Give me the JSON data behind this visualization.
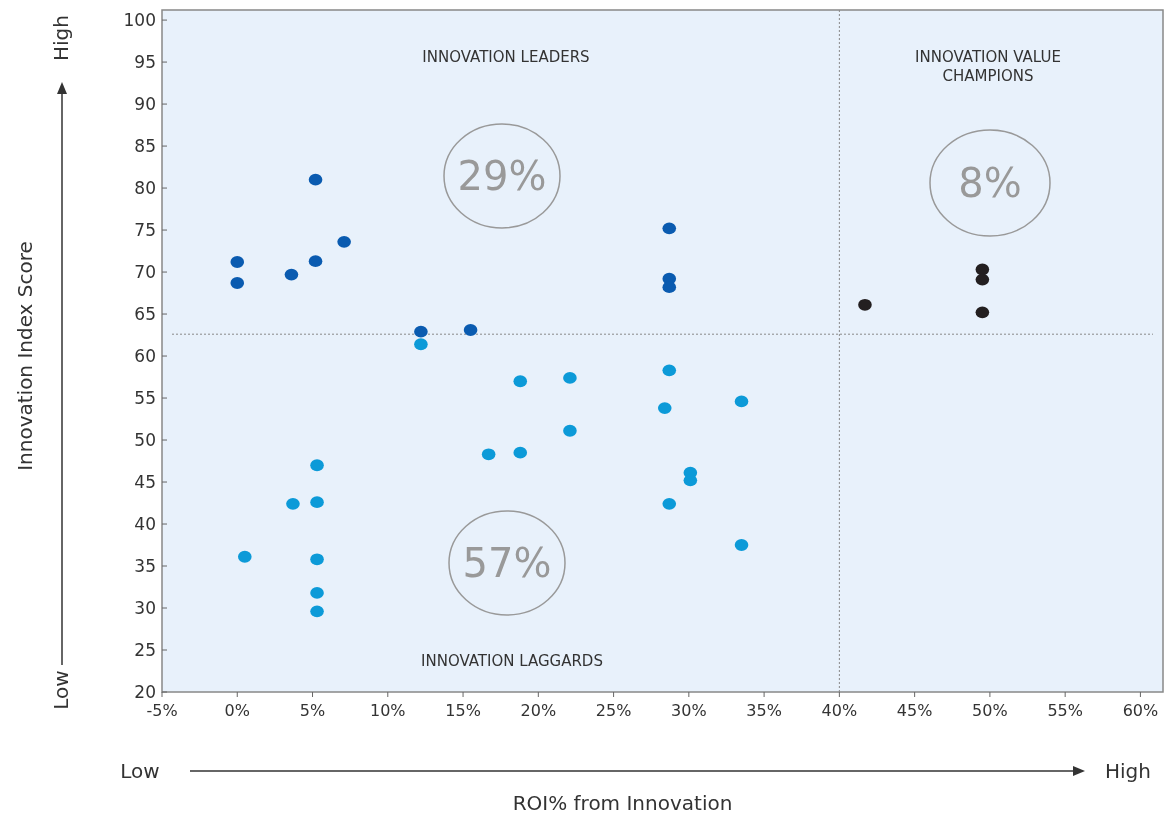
{
  "chart_data": {
    "type": "scatter",
    "xlabel": "ROI% from Innovation",
    "ylabel": "Innovation Index Score",
    "xlim": [
      -5,
      61.5
    ],
    "ylim": [
      20,
      101.2
    ],
    "xticks": [
      {
        "value": -5,
        "label": "-5%"
      },
      {
        "value": 0,
        "label": "0%"
      },
      {
        "value": 5,
        "label": "5%"
      },
      {
        "value": 10,
        "label": "10%"
      },
      {
        "value": 15,
        "label": "15%"
      },
      {
        "value": 20,
        "label": "20%"
      },
      {
        "value": 25,
        "label": "25%"
      },
      {
        "value": 30,
        "label": "30%"
      },
      {
        "value": 35,
        "label": "35%"
      },
      {
        "value": 40,
        "label": "40%"
      },
      {
        "value": 45,
        "label": "45%"
      },
      {
        "value": 50,
        "label": "50%"
      },
      {
        "value": 55,
        "label": "55%"
      },
      {
        "value": 60,
        "label": "60%"
      }
    ],
    "yticks": [
      20,
      25,
      30,
      35,
      40,
      45,
      50,
      55,
      60,
      65,
      70,
      75,
      80,
      85,
      90,
      95,
      100
    ],
    "grid": false,
    "marker": "circle",
    "series": [
      {
        "color": "#0a5bb0",
        "x": [
          0,
          0,
          3.6,
          5.2,
          5.2,
          7.1,
          12.2,
          15.5,
          28.7,
          28.7,
          28.7
        ],
        "values": [
          68.7,
          71.2,
          69.7,
          81,
          71.3,
          73.6,
          62.9,
          63.1,
          75.2,
          69.2,
          68.2
        ]
      },
      {
        "color": "#0c9ad8",
        "x": [
          12.2,
          18.8,
          22.1,
          28.7,
          28.4,
          33.5,
          22.1,
          16.7,
          18.8,
          30.1,
          30.1,
          28.7,
          33.5,
          5.3,
          3.7,
          5.3,
          0.5,
          5.3,
          5.3,
          5.3
        ],
        "values": [
          61.4,
          57.0,
          57.4,
          58.3,
          53.8,
          54.6,
          51.1,
          48.3,
          48.5,
          46.1,
          45.2,
          42.4,
          37.5,
          47.0,
          42.4,
          42.6,
          36.1,
          35.8,
          31.8,
          29.6
        ]
      },
      {
        "color": "#231f20",
        "x": [
          41.7,
          49.5,
          49.5,
          49.5
        ],
        "values": [
          66.1,
          70.3,
          69.1,
          65.2
        ]
      }
    ],
    "ref_lines": [
      {
        "axis": "x",
        "value": 40,
        "color": "#888888",
        "line_style": "dotted"
      },
      {
        "axis": "y",
        "value": 62.6,
        "color": "#888888",
        "line_style": "dotted"
      }
    ],
    "annotations": [
      "INNOVATION LEADERS",
      "INNOVATION VALUE\nCHAMPIONS",
      "INNOVATION LAGGARDS",
      "29%",
      "8%",
      "57%",
      "Low",
      "High",
      "Low",
      "High"
    ]
  }
}
